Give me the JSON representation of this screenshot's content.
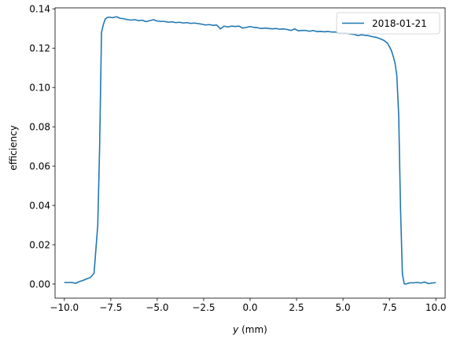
{
  "chart_data": {
    "type": "line",
    "title": "",
    "xlabel_var": "y",
    "xlabel_unit": " (mm)",
    "ylabel": "efficiency",
    "xlim": [
      -10.5,
      10.5
    ],
    "ylim": [
      -0.0072,
      0.1405
    ],
    "xticks": [
      -10.0,
      -7.5,
      -5.0,
      -2.5,
      0.0,
      2.5,
      5.0,
      7.5,
      10.0
    ],
    "xtick_labels": [
      "−10.0",
      "−7.5",
      "−5.0",
      "−2.5",
      "0.0",
      "2.5",
      "5.0",
      "7.5",
      "10.0"
    ],
    "yticks": [
      0.0,
      0.02,
      0.04,
      0.06,
      0.08,
      0.1,
      0.12,
      0.14
    ],
    "ytick_labels": [
      "0.00",
      "0.02",
      "0.04",
      "0.06",
      "0.08",
      "0.10",
      "0.12",
      "0.14"
    ],
    "grid": false,
    "legend_position": "top-right",
    "series": [
      {
        "name": "2018-01-21",
        "color": "#1f77b4",
        "x": [
          -10.0,
          -9.8,
          -9.6,
          -9.4,
          -9.2,
          -9.0,
          -8.8,
          -8.6,
          -8.4,
          -8.2,
          -8.1,
          -8.0,
          -7.9,
          -7.8,
          -7.7,
          -7.6,
          -7.4,
          -7.2,
          -7.0,
          -6.8,
          -6.6,
          -6.4,
          -6.2,
          -6.0,
          -5.8,
          -5.6,
          -5.4,
          -5.2,
          -5.0,
          -4.8,
          -4.6,
          -4.4,
          -4.2,
          -4.0,
          -3.8,
          -3.6,
          -3.4,
          -3.2,
          -3.0,
          -2.8,
          -2.6,
          -2.4,
          -2.2,
          -2.0,
          -1.8,
          -1.6,
          -1.4,
          -1.2,
          -1.0,
          -0.8,
          -0.6,
          -0.4,
          -0.2,
          0.0,
          0.2,
          0.4,
          0.6,
          0.8,
          1.0,
          1.2,
          1.4,
          1.6,
          1.8,
          2.0,
          2.2,
          2.4,
          2.6,
          2.8,
          3.0,
          3.2,
          3.4,
          3.6,
          3.8,
          4.0,
          4.2,
          4.4,
          4.6,
          4.8,
          5.0,
          5.2,
          5.4,
          5.6,
          5.8,
          6.0,
          6.2,
          6.4,
          6.6,
          6.8,
          7.0,
          7.2,
          7.4,
          7.6,
          7.7,
          7.8,
          7.9,
          8.0,
          8.1,
          8.2,
          8.3,
          8.4,
          8.6,
          8.8,
          9.0,
          9.2,
          9.4,
          9.6,
          9.8,
          10.0
        ],
        "y": [
          0.0008,
          0.0007,
          0.0008,
          0.0003,
          0.0012,
          0.0018,
          0.0026,
          0.0033,
          0.0055,
          0.03,
          0.07,
          0.128,
          0.132,
          0.1348,
          0.1355,
          0.1358,
          0.1355,
          0.136,
          0.1352,
          0.135,
          0.1345,
          0.1343,
          0.1345,
          0.134,
          0.1342,
          0.1335,
          0.134,
          0.1345,
          0.1338,
          0.1336,
          0.1336,
          0.1332,
          0.1334,
          0.133,
          0.1332,
          0.1328,
          0.133,
          0.1326,
          0.1328,
          0.1325,
          0.1322,
          0.1318,
          0.132,
          0.1316,
          0.1318,
          0.1298,
          0.1312,
          0.1308,
          0.1312,
          0.131,
          0.1312,
          0.1302,
          0.1306,
          0.131,
          0.1306,
          0.1304,
          0.13,
          0.1302,
          0.13,
          0.1298,
          0.13,
          0.1296,
          0.1298,
          0.1295,
          0.129,
          0.1298,
          0.1288,
          0.129,
          0.129,
          0.1286,
          0.129,
          0.1284,
          0.1285,
          0.1283,
          0.1285,
          0.1282,
          0.1282,
          0.1278,
          0.1276,
          0.1276,
          0.1272,
          0.127,
          0.1264,
          0.1268,
          0.1265,
          0.1263,
          0.1258,
          0.1255,
          0.1248,
          0.124,
          0.1225,
          0.119,
          0.116,
          0.1125,
          0.106,
          0.086,
          0.038,
          0.005,
          0.0,
          0.0,
          0.0006,
          0.0006,
          0.0008,
          0.0005,
          0.001,
          0.0002,
          0.0005,
          0.0007
        ]
      }
    ]
  }
}
